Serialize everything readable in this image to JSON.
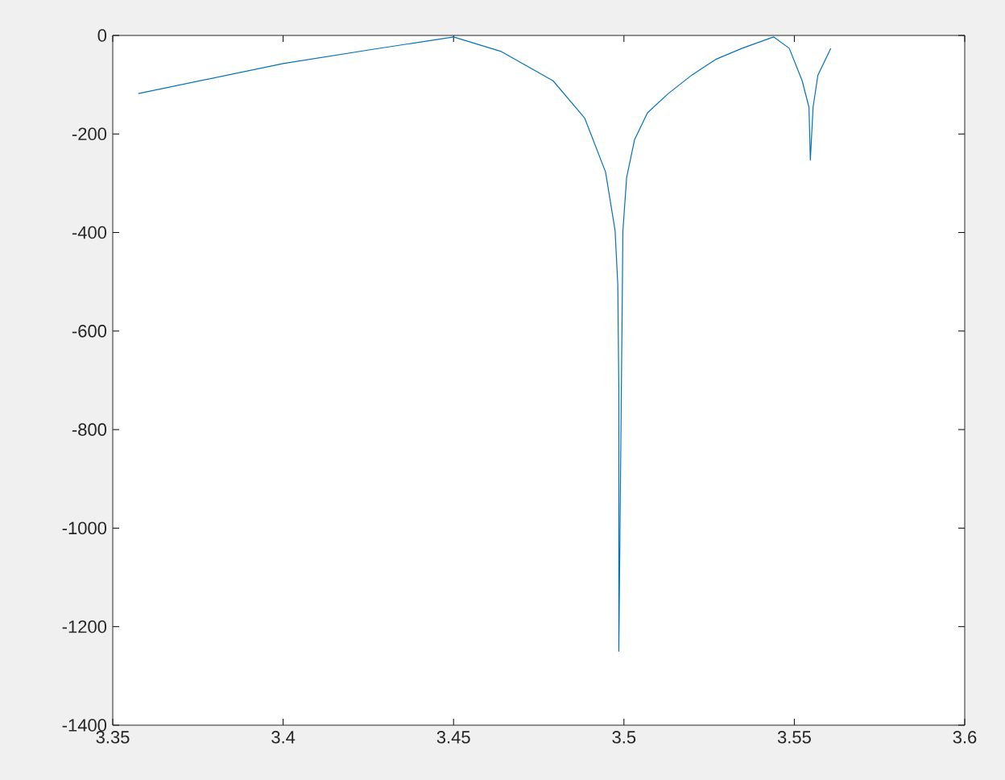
{
  "chart_data": {
    "type": "line",
    "xlim": [
      3.35,
      3.6
    ],
    "ylim": [
      -1400,
      0
    ],
    "xticks": [
      3.35,
      3.4,
      3.45,
      3.5,
      3.55,
      3.6
    ],
    "yticks": [
      -1400,
      -1200,
      -1000,
      -800,
      -600,
      -400,
      -200,
      0
    ],
    "series": [
      {
        "color": "#0072bd",
        "x": [
          3.3575,
          3.4,
          3.4255,
          3.45,
          3.4638,
          3.4792,
          3.4885,
          3.4946,
          3.4974,
          3.4982,
          3.4985,
          3.4985,
          3.4997,
          3.5008,
          3.5031,
          3.5069,
          3.513,
          3.52,
          3.5271,
          3.5347,
          3.5439,
          3.5485,
          3.5523,
          3.5543,
          3.5547,
          3.5555,
          3.5569,
          3.5607
        ],
        "values": [
          -118,
          -57,
          -29,
          -3,
          -32,
          -92,
          -168,
          -277,
          -396,
          -506,
          -720,
          -1250,
          -396,
          -288,
          -212,
          -157,
          -118,
          -80,
          -48,
          -26,
          -3,
          -26,
          -92,
          -146,
          -253,
          -146,
          -81,
          -26
        ]
      }
    ]
  }
}
